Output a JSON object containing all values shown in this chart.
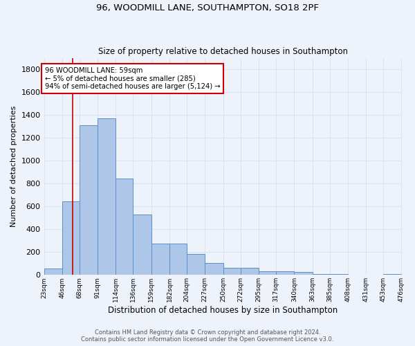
{
  "title1": "96, WOODMILL LANE, SOUTHAMPTON, SO18 2PF",
  "title2": "Size of property relative to detached houses in Southampton",
  "xlabel": "Distribution of detached houses by size in Southampton",
  "ylabel": "Number of detached properties",
  "footer1": "Contains HM Land Registry data © Crown copyright and database right 2024.",
  "footer2": "Contains public sector information licensed under the Open Government Licence v3.0.",
  "annotation_title": "96 WOODMILL LANE: 59sqm",
  "annotation_line1": "← 5% of detached houses are smaller (285)",
  "annotation_line2": "94% of semi-detached houses are larger (5,124) →",
  "bar_color": "#aec6e8",
  "bar_edge_color": "#5b8fc9",
  "vline_color": "#cc0000",
  "vline_x": 59,
  "bin_edges": [
    23,
    46,
    68,
    91,
    114,
    136,
    159,
    182,
    204,
    227,
    250,
    272,
    295,
    317,
    340,
    363,
    385,
    408,
    431,
    453,
    476
  ],
  "bar_heights": [
    55,
    645,
    1310,
    1370,
    845,
    530,
    275,
    275,
    185,
    105,
    65,
    65,
    35,
    35,
    25,
    10,
    10,
    0,
    0,
    10
  ],
  "ylim": [
    0,
    1900
  ],
  "yticks": [
    0,
    200,
    400,
    600,
    800,
    1000,
    1200,
    1400,
    1600,
    1800
  ],
  "bg_color": "#eef3fb",
  "grid_color": "#d8e4f0",
  "annotation_box_color": "#ffffff",
  "annotation_box_edge": "#cc0000"
}
